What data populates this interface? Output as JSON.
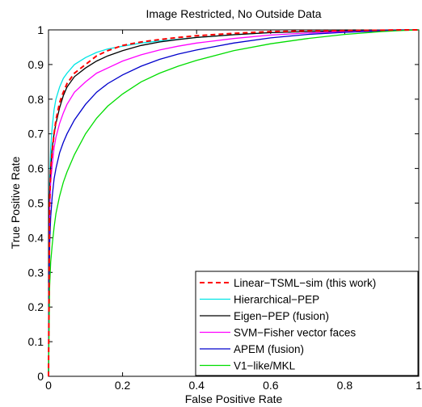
{
  "chart_data": {
    "type": "line",
    "title": "Image Restricted, No Outside Data",
    "xlabel": "False Positive Rate",
    "ylabel": "True Positive Rate",
    "xlim": [
      0,
      1
    ],
    "ylim": [
      0,
      1
    ],
    "xticks": [
      0,
      0.2,
      0.4,
      0.6,
      0.8,
      1
    ],
    "yticks": [
      0,
      0.1,
      0.2,
      0.3,
      0.4,
      0.5,
      0.6,
      0.7,
      0.8,
      0.9,
      1
    ],
    "xtick_labels": [
      "0",
      "0.2",
      "0.4",
      "0.6",
      "0.8",
      "1"
    ],
    "ytick_labels": [
      "0",
      "0.1",
      "0.2",
      "0.3",
      "0.4",
      "0.5",
      "0.6",
      "0.7",
      "0.8",
      "0.9",
      "1"
    ],
    "grid": false,
    "legend_position": "bottom-right",
    "series": [
      {
        "name": "Linear−TSML−sim (this work)",
        "color": "#ff0000",
        "dash": "dashed",
        "x": [
          0,
          0.003,
          0.006,
          0.01,
          0.015,
          0.02,
          0.03,
          0.04,
          0.05,
          0.07,
          0.1,
          0.13,
          0.16,
          0.2,
          0.25,
          0.3,
          0.35,
          0.4,
          0.5,
          0.6,
          0.7,
          0.8,
          0.9,
          0.95,
          1
        ],
        "y": [
          0,
          0.5,
          0.6,
          0.65,
          0.7,
          0.74,
          0.79,
          0.82,
          0.845,
          0.875,
          0.9,
          0.925,
          0.94,
          0.955,
          0.965,
          0.972,
          0.978,
          0.983,
          0.99,
          0.995,
          0.997,
          0.998,
          0.999,
          1,
          1
        ]
      },
      {
        "name": "Hierarchical−PEP",
        "color": "#00e5e5",
        "dash": "solid",
        "x": [
          0,
          0.003,
          0.006,
          0.01,
          0.015,
          0.02,
          0.03,
          0.04,
          0.05,
          0.07,
          0.1,
          0.13,
          0.16,
          0.2,
          0.25,
          0.3,
          0.35,
          0.4,
          0.5,
          0.6,
          0.7,
          0.8,
          0.9,
          0.95,
          1
        ],
        "y": [
          0,
          0.56,
          0.66,
          0.72,
          0.77,
          0.8,
          0.835,
          0.86,
          0.875,
          0.9,
          0.92,
          0.935,
          0.945,
          0.953,
          0.962,
          0.968,
          0.973,
          0.978,
          0.986,
          0.992,
          0.995,
          0.997,
          0.999,
          1,
          1
        ]
      },
      {
        "name": "Eigen−PEP (fusion)",
        "color": "#000000",
        "dash": "solid",
        "x": [
          0,
          0.003,
          0.006,
          0.01,
          0.015,
          0.02,
          0.03,
          0.04,
          0.05,
          0.07,
          0.1,
          0.13,
          0.16,
          0.2,
          0.25,
          0.3,
          0.35,
          0.4,
          0.5,
          0.6,
          0.7,
          0.8,
          0.9,
          0.95,
          1
        ],
        "y": [
          0,
          0.52,
          0.6,
          0.66,
          0.7,
          0.73,
          0.775,
          0.81,
          0.835,
          0.865,
          0.89,
          0.91,
          0.925,
          0.94,
          0.955,
          0.965,
          0.972,
          0.978,
          0.986,
          0.992,
          0.995,
          0.997,
          0.999,
          1,
          1
        ]
      },
      {
        "name": "SVM−Fisher vector faces",
        "color": "#ff00ff",
        "dash": "solid",
        "x": [
          0,
          0.003,
          0.006,
          0.01,
          0.015,
          0.02,
          0.03,
          0.04,
          0.05,
          0.07,
          0.1,
          0.13,
          0.16,
          0.2,
          0.25,
          0.3,
          0.35,
          0.4,
          0.5,
          0.6,
          0.7,
          0.8,
          0.9,
          0.95,
          1
        ],
        "y": [
          0,
          0.48,
          0.56,
          0.61,
          0.66,
          0.69,
          0.73,
          0.76,
          0.785,
          0.82,
          0.85,
          0.875,
          0.89,
          0.91,
          0.928,
          0.942,
          0.953,
          0.962,
          0.975,
          0.985,
          0.991,
          0.995,
          0.998,
          0.999,
          1
        ]
      },
      {
        "name": "APEM (fusion)",
        "color": "#0000cc",
        "dash": "solid",
        "x": [
          0,
          0.003,
          0.006,
          0.01,
          0.015,
          0.02,
          0.03,
          0.04,
          0.05,
          0.07,
          0.1,
          0.13,
          0.16,
          0.2,
          0.25,
          0.3,
          0.35,
          0.4,
          0.5,
          0.6,
          0.7,
          0.8,
          0.9,
          0.95,
          1
        ],
        "y": [
          0,
          0.38,
          0.46,
          0.52,
          0.57,
          0.6,
          0.645,
          0.675,
          0.7,
          0.74,
          0.785,
          0.82,
          0.845,
          0.87,
          0.895,
          0.915,
          0.93,
          0.942,
          0.962,
          0.977,
          0.987,
          0.993,
          0.997,
          0.999,
          1
        ]
      },
      {
        "name": "V1−like/MKL",
        "color": "#00dd00",
        "dash": "solid",
        "x": [
          0,
          0.003,
          0.006,
          0.01,
          0.015,
          0.02,
          0.03,
          0.04,
          0.05,
          0.07,
          0.1,
          0.13,
          0.16,
          0.2,
          0.25,
          0.3,
          0.35,
          0.4,
          0.5,
          0.6,
          0.7,
          0.8,
          0.9,
          0.95,
          1
        ],
        "y": [
          0,
          0.26,
          0.33,
          0.38,
          0.43,
          0.47,
          0.52,
          0.56,
          0.59,
          0.64,
          0.7,
          0.745,
          0.78,
          0.815,
          0.85,
          0.875,
          0.895,
          0.912,
          0.94,
          0.96,
          0.975,
          0.987,
          0.995,
          0.998,
          1
        ]
      }
    ]
  }
}
